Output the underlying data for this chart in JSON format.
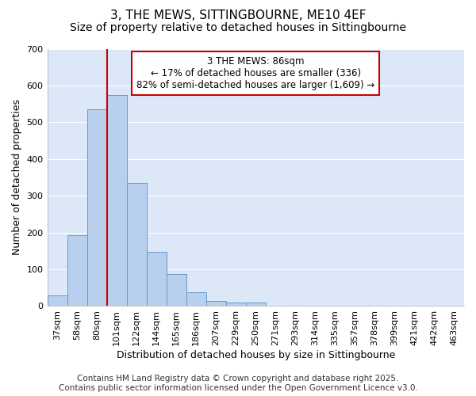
{
  "title1": "3, THE MEWS, SITTINGBOURNE, ME10 4EF",
  "title2": "Size of property relative to detached houses in Sittingbourne",
  "xlabel": "Distribution of detached houses by size in Sittingbourne",
  "ylabel": "Number of detached properties",
  "bar_labels": [
    "37sqm",
    "58sqm",
    "80sqm",
    "101sqm",
    "122sqm",
    "144sqm",
    "165sqm",
    "186sqm",
    "207sqm",
    "229sqm",
    "250sqm",
    "271sqm",
    "293sqm",
    "314sqm",
    "335sqm",
    "357sqm",
    "378sqm",
    "399sqm",
    "421sqm",
    "442sqm",
    "463sqm"
  ],
  "bar_values": [
    30,
    193,
    535,
    575,
    335,
    148,
    87,
    38,
    13,
    10,
    10,
    2,
    2,
    0,
    0,
    0,
    0,
    0,
    0,
    0,
    0
  ],
  "bar_color": "#b8d0ee",
  "bar_edgecolor": "#6699cc",
  "plot_bg_color": "#dce8f8",
  "fig_bg_color": "#ffffff",
  "grid_color": "#ffffff",
  "vline_x_index": 2.5,
  "annotation_title": "3 THE MEWS: 86sqm",
  "annotation_line1": "← 17% of detached houses are smaller (336)",
  "annotation_line2": "82% of semi-detached houses are larger (1,609) →",
  "annotation_box_color": "#ffffff",
  "annotation_box_edgecolor": "#cc0000",
  "vline_color": "#cc0000",
  "footer1": "Contains HM Land Registry data © Crown copyright and database right 2025.",
  "footer2": "Contains public sector information licensed under the Open Government Licence v3.0.",
  "ylim": [
    0,
    700
  ],
  "title_fontsize": 11,
  "subtitle_fontsize": 10,
  "axis_label_fontsize": 9,
  "tick_fontsize": 8,
  "annotation_fontsize": 8.5,
  "footer_fontsize": 7.5
}
